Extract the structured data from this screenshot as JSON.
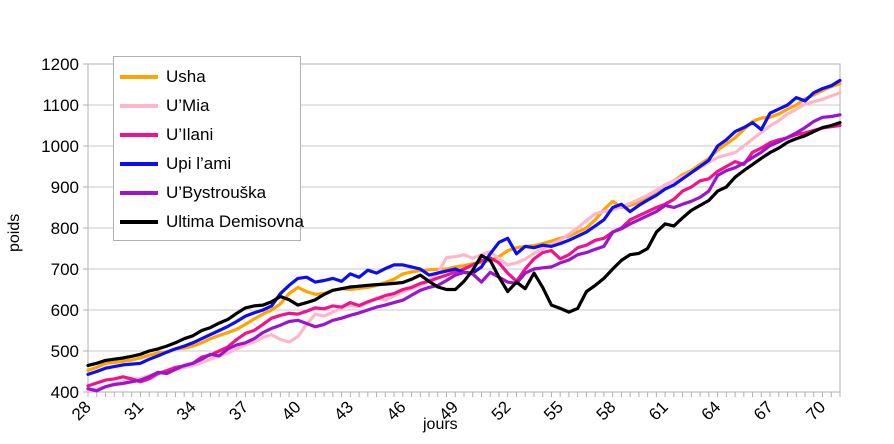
{
  "chart_data": {
    "type": "line",
    "title": "",
    "xlabel": "jours",
    "ylabel": "poids",
    "xlim": [
      28,
      71
    ],
    "ylim": [
      400,
      1200
    ],
    "y_tick_step": 100,
    "x_tick_labels": [
      28,
      31,
      34,
      37,
      40,
      43,
      46,
      49,
      52,
      55,
      58,
      61,
      64,
      67,
      70
    ],
    "x_start": 28,
    "x_step": 0.5,
    "grid": "horizontal",
    "legend_position": "top-left-inside",
    "background_color": "#ffffff",
    "frame_color": "#b0b0b0",
    "grid_color": "#c9c9c9",
    "text_color": "#000000",
    "series": [
      {
        "name": "Usha",
        "color": "#ffa300",
        "values": [
          453,
          460,
          470,
          472,
          475,
          478,
          483,
          490,
          495,
          498,
          505,
          507,
          512,
          520,
          530,
          538,
          545,
          553,
          565,
          578,
          590,
          600,
          615,
          640,
          655,
          645,
          638,
          640,
          648,
          652,
          650,
          653,
          655,
          660,
          667,
          675,
          688,
          693,
          696,
          698,
          699,
          700,
          705,
          708,
          713,
          716,
          721,
          730,
          745,
          752,
          755,
          757,
          762,
          768,
          775,
          780,
          790,
          800,
          820,
          845,
          865,
          850,
          855,
          862,
          875,
          890,
          905,
          915,
          930,
          940,
          955,
          970,
          990,
          1005,
          1020,
          1040,
          1060,
          1068,
          1070,
          1078,
          1090,
          1100,
          1115,
          1125,
          1135,
          1145,
          1152
        ]
      },
      {
        "name": "U’Mia",
        "color": "#ffb6c9",
        "values": [
          404,
          408,
          413,
          420,
          425,
          430,
          433,
          440,
          445,
          450,
          455,
          460,
          465,
          472,
          480,
          488,
          495,
          505,
          515,
          522,
          533,
          540,
          528,
          522,
          535,
          565,
          590,
          585,
          595,
          605,
          612,
          608,
          618,
          630,
          624,
          635,
          644,
          652,
          660,
          672,
          690,
          728,
          730,
          735,
          726,
          735,
          742,
          725,
          710,
          715,
          724,
          738,
          750,
          760,
          770,
          785,
          800,
          818,
          835,
          840,
          845,
          852,
          860,
          870,
          880,
          892,
          905,
          915,
          925,
          936,
          948,
          960,
          972,
          978,
          984,
          1000,
          1017,
          1033,
          1049,
          1062,
          1078,
          1090,
          1102,
          1108,
          1114,
          1122,
          1130
        ]
      },
      {
        "name": "U’Ilani",
        "color": "#f0148c",
        "values": [
          415,
          422,
          429,
          432,
          437,
          432,
          425,
          432,
          445,
          452,
          460,
          464,
          470,
          485,
          490,
          500,
          510,
          528,
          543,
          550,
          565,
          580,
          587,
          592,
          590,
          597,
          605,
          603,
          610,
          607,
          618,
          611,
          620,
          627,
          635,
          640,
          650,
          655,
          665,
          670,
          678,
          685,
          693,
          700,
          710,
          720,
          727,
          715,
          690,
          670,
          700,
          725,
          740,
          745,
          725,
          735,
          752,
          758,
          770,
          775,
          790,
          800,
          820,
          830,
          840,
          850,
          858,
          870,
          890,
          900,
          915,
          920,
          938,
          950,
          962,
          955,
          985,
          995,
          1008,
          1015,
          1020,
          1028,
          1032,
          1038,
          1044,
          1047,
          1050
        ]
      },
      {
        "name": "Upi l’ami",
        "color": "#0d0df5",
        "values": [
          443,
          450,
          458,
          462,
          466,
          468,
          470,
          480,
          488,
          497,
          505,
          512,
          520,
          530,
          540,
          550,
          560,
          572,
          585,
          593,
          600,
          610,
          640,
          660,
          677,
          680,
          668,
          672,
          677,
          670,
          688,
          680,
          697,
          690,
          701,
          710,
          710,
          705,
          700,
          685,
          690,
          695,
          700,
          692,
          690,
          705,
          737,
          765,
          775,
          737,
          755,
          752,
          758,
          755,
          762,
          770,
          780,
          790,
          805,
          820,
          850,
          858,
          840,
          855,
          868,
          880,
          895,
          905,
          920,
          935,
          950,
          965,
          1000,
          1015,
          1035,
          1045,
          1057,
          1040,
          1080,
          1090,
          1100,
          1118,
          1110,
          1130,
          1140,
          1147,
          1160
        ]
      },
      {
        "name": "U’Bystrouška",
        "color": "#9b15cc",
        "values": [
          408,
          403,
          413,
          418,
          421,
          425,
          429,
          437,
          448,
          445,
          455,
          465,
          470,
          480,
          492,
          488,
          505,
          515,
          520,
          530,
          545,
          555,
          563,
          572,
          575,
          567,
          559,
          565,
          575,
          580,
          587,
          593,
          600,
          607,
          612,
          618,
          624,
          636,
          648,
          655,
          660,
          672,
          685,
          692,
          688,
          668,
          692,
          680,
          668,
          665,
          690,
          700,
          703,
          705,
          715,
          722,
          735,
          740,
          748,
          755,
          790,
          798,
          810,
          820,
          830,
          840,
          855,
          850,
          858,
          865,
          875,
          890,
          928,
          940,
          947,
          958,
          972,
          985,
          1001,
          1010,
          1021,
          1032,
          1045,
          1060,
          1070,
          1072,
          1076
        ]
      },
      {
        "name": "Ultima Demisovna",
        "color": "#000000",
        "values": [
          465,
          470,
          477,
          480,
          483,
          487,
          492,
          500,
          505,
          512,
          520,
          530,
          537,
          550,
          557,
          568,
          577,
          592,
          605,
          610,
          612,
          620,
          633,
          625,
          612,
          618,
          625,
          638,
          648,
          652,
          656,
          658,
          660,
          662,
          663,
          665,
          667,
          675,
          685,
          670,
          656,
          650,
          650,
          670,
          697,
          733,
          721,
          680,
          645,
          668,
          652,
          690,
          655,
          612,
          604,
          595,
          604,
          645,
          660,
          677,
          700,
          721,
          735,
          738,
          750,
          790,
          810,
          805,
          825,
          843,
          855,
          867,
          890,
          900,
          924,
          940,
          955,
          970,
          984,
          995,
          1009,
          1018,
          1025,
          1035,
          1045,
          1050,
          1057
        ]
      }
    ]
  }
}
